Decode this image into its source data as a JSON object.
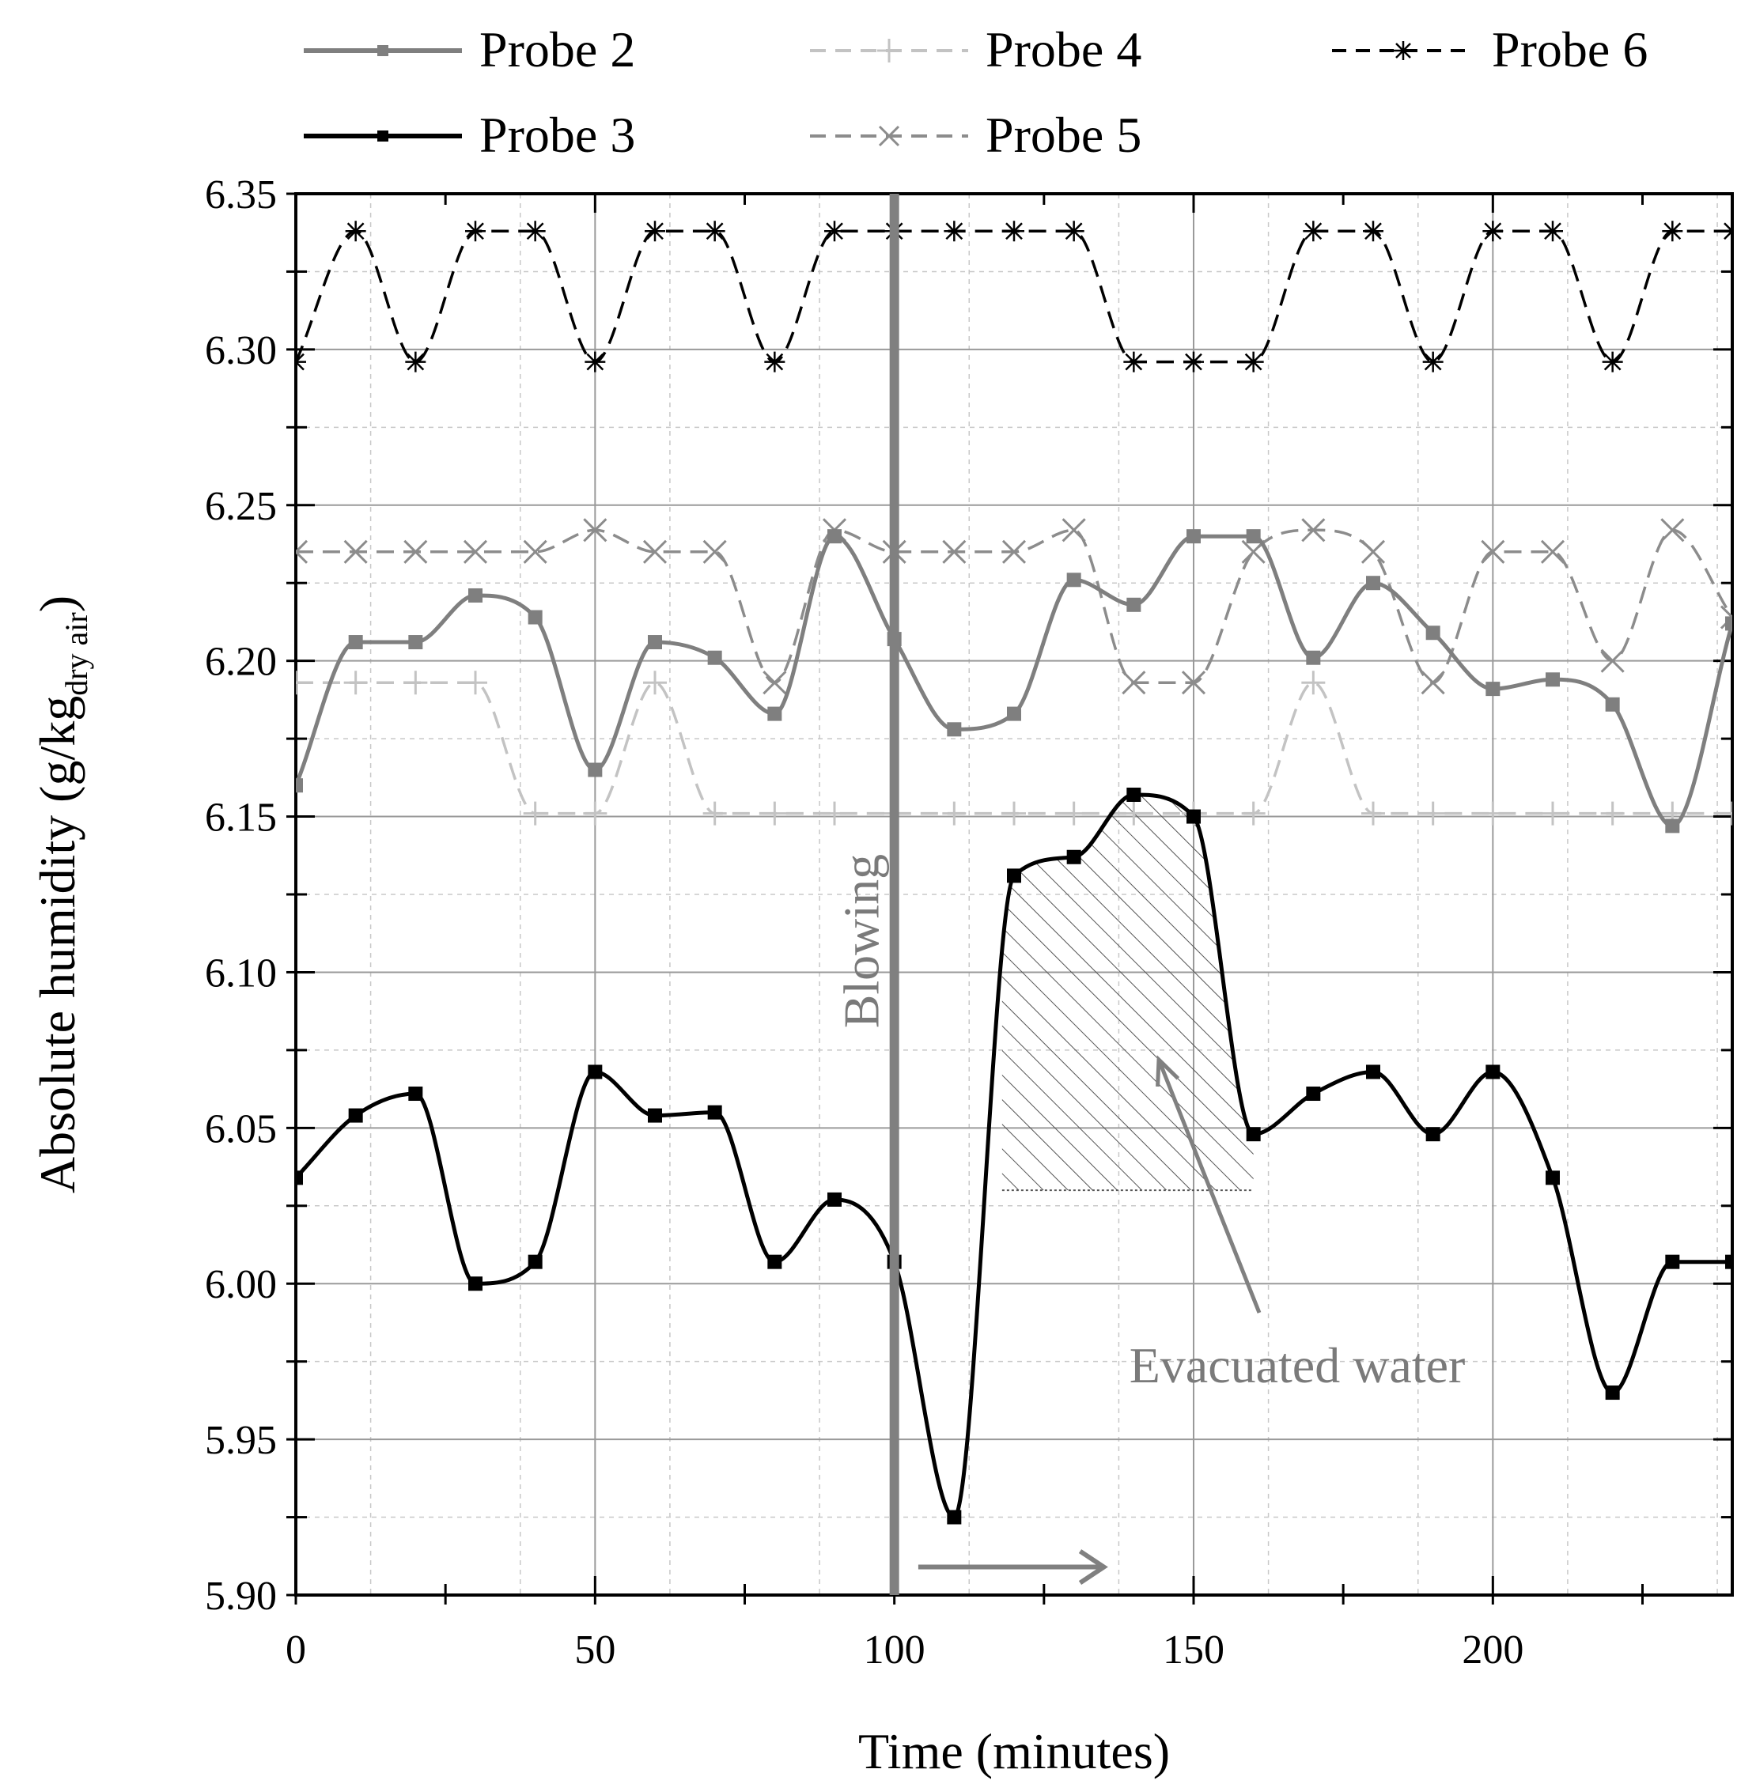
{
  "chart_data": {
    "type": "line",
    "title": "",
    "xlabel": "Time (minutes)",
    "ylabel": "Absolute humidity (g/kg",
    "ylabel_sub": "dry air",
    "ylabel_close": ")",
    "xlim": [
      0,
      240
    ],
    "ylim": [
      5.9,
      6.35
    ],
    "x_ticks": [
      0,
      50,
      100,
      150,
      200
    ],
    "y_ticks": [
      5.9,
      5.95,
      6.0,
      6.05,
      6.1,
      6.15,
      6.2,
      6.25,
      6.3,
      6.35
    ],
    "x_tick_labels": [
      "0",
      "50",
      "100",
      "150",
      "200"
    ],
    "y_tick_labels": [
      "5.90",
      "5.95",
      "6.00",
      "6.05",
      "6.10",
      "6.15",
      "6.20",
      "6.25",
      "6.30",
      "6.35"
    ],
    "grid": true,
    "legend_position": "top",
    "series": [
      {
        "name": "Probe 2",
        "color": "#7f7f7f",
        "line": "solid",
        "marker": "square",
        "x": [
          0,
          10,
          20,
          30,
          40,
          50,
          60,
          70,
          80,
          90,
          100,
          110,
          120,
          130,
          140,
          150,
          160,
          170,
          180,
          190,
          200,
          210,
          220,
          230,
          240
        ],
        "values": [
          6.16,
          6.206,
          6.206,
          6.221,
          6.214,
          6.165,
          6.206,
          6.201,
          6.183,
          6.24,
          6.207,
          6.178,
          6.183,
          6.226,
          6.218,
          6.24,
          6.24,
          6.201,
          6.225,
          6.209,
          6.191,
          6.194,
          6.186,
          6.147,
          6.212
        ]
      },
      {
        "name": "Probe 3",
        "color": "#000000",
        "line": "solid",
        "marker": "square",
        "x": [
          0,
          10,
          20,
          30,
          40,
          50,
          60,
          70,
          80,
          90,
          100,
          110,
          120,
          130,
          140,
          150,
          160,
          170,
          180,
          190,
          200,
          210,
          220,
          230,
          240
        ],
        "values": [
          6.034,
          6.054,
          6.061,
          6.0,
          6.007,
          6.068,
          6.054,
          6.055,
          6.007,
          6.027,
          6.007,
          5.925,
          6.131,
          6.137,
          6.157,
          6.15,
          6.048,
          6.061,
          6.068,
          6.048,
          6.068,
          6.034,
          5.965,
          6.007,
          6.007
        ]
      },
      {
        "name": "Probe 4",
        "color": "#c3c3c3",
        "line": "dashed",
        "marker": "plus",
        "x": [
          0,
          10,
          20,
          30,
          40,
          50,
          60,
          70,
          80,
          90,
          100,
          110,
          120,
          130,
          140,
          150,
          160,
          170,
          180,
          190,
          200,
          210,
          220,
          230,
          240
        ],
        "values": [
          6.193,
          6.193,
          6.193,
          6.193,
          6.151,
          6.151,
          6.193,
          6.151,
          6.151,
          6.151,
          6.151,
          6.151,
          6.151,
          6.151,
          6.151,
          6.151,
          6.151,
          6.193,
          6.151,
          6.151,
          6.151,
          6.151,
          6.151,
          6.151,
          6.151
        ]
      },
      {
        "name": "Probe 5",
        "color": "#8c8c8c",
        "line": "dashed",
        "marker": "x",
        "x": [
          0,
          10,
          20,
          30,
          40,
          50,
          60,
          70,
          80,
          90,
          100,
          110,
          120,
          130,
          140,
          150,
          160,
          170,
          180,
          190,
          200,
          210,
          220,
          230,
          240
        ],
        "values": [
          6.235,
          6.235,
          6.235,
          6.235,
          6.235,
          6.242,
          6.235,
          6.235,
          6.193,
          6.242,
          6.235,
          6.235,
          6.235,
          6.242,
          6.193,
          6.193,
          6.235,
          6.242,
          6.235,
          6.193,
          6.235,
          6.235,
          6.2,
          6.242,
          6.214
        ]
      },
      {
        "name": "Probe 6",
        "color": "#000000",
        "line": "dashed",
        "marker": "asterisk",
        "x": [
          0,
          10,
          20,
          30,
          40,
          50,
          60,
          70,
          80,
          90,
          100,
          110,
          120,
          130,
          140,
          150,
          160,
          170,
          180,
          190,
          200,
          210,
          220,
          230,
          240
        ],
        "values": [
          6.296,
          6.338,
          6.296,
          6.338,
          6.338,
          6.296,
          6.338,
          6.338,
          6.296,
          6.338,
          6.338,
          6.338,
          6.338,
          6.338,
          6.296,
          6.296,
          6.296,
          6.338,
          6.338,
          6.296,
          6.338,
          6.338,
          6.296,
          6.338,
          6.338
        ]
      }
    ],
    "annotations": {
      "blowing_label": "Blowing",
      "blowing_x": 100,
      "evacuated_label": "Evacuated water",
      "arrow_x_start": 104,
      "arrow_x_end": 135,
      "arrow_y": 5.909,
      "hatch_x_range": [
        118,
        160
      ],
      "hatch_y_base": 6.03
    }
  }
}
